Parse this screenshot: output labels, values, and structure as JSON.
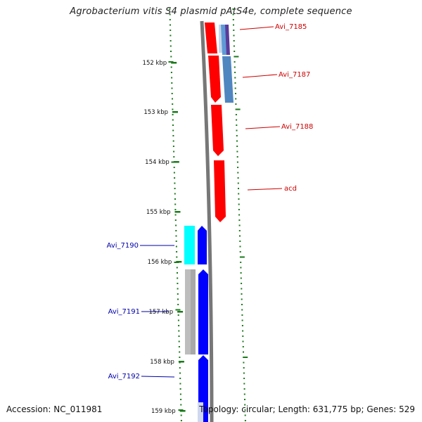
{
  "title": "Agrobacterium vitis S4 plasmid pAtS4e, complete sequence",
  "footer": {
    "accession": "Accession: NC_011981",
    "summary": "Topology: circular; Length: 631,775 bp; Genes: 529"
  },
  "colors": {
    "forward_gene": "#ff0000",
    "reverse_gene": "#0000ff",
    "forward_label": "#cc0000",
    "reverse_label": "#0000aa",
    "cds_light_blue": "#4f8fd0",
    "cds_purple": "#5a3a9a",
    "cds_cyan": "#00ffff",
    "cds_gray": "#bbbbbb",
    "tick": "#1a7a1a",
    "backbone": "#777777"
  },
  "scale": {
    "tick_labels": [
      "152 kbp",
      "153 kbp",
      "154 kbp",
      "155 kbp",
      "156 kbp",
      "157 kbp",
      "158 kbp",
      "159 kbp"
    ]
  },
  "genes_forward": [
    {
      "label": "Avi_7185"
    },
    {
      "label": "Avi_7187"
    },
    {
      "label": "Avi_7188"
    },
    {
      "label": "acd"
    }
  ],
  "genes_reverse": [
    {
      "label": "Avi_7190"
    },
    {
      "label": "Avi_7191"
    },
    {
      "label": "Avi_7192"
    }
  ]
}
